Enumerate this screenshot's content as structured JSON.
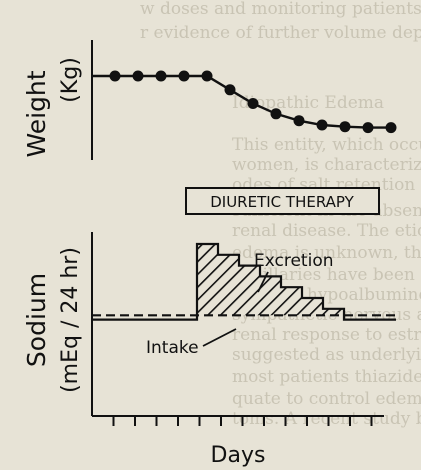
{
  "chart_data": [
    {
      "type": "line",
      "ylabel": "Weight (Kg)",
      "xlabel": "",
      "x": [
        1,
        2,
        3,
        4,
        5,
        6,
        7,
        8,
        9,
        10,
        11,
        12,
        13
      ],
      "series": [
        {
          "values": [
            10,
            10,
            10,
            10,
            10,
            8.4,
            6.8,
            5.6,
            4.8,
            4.3,
            4.1,
            4.0,
            4.0
          ]
        }
      ]
    },
    {
      "type": "step",
      "ylabel": "Sodium (mEq / 24 hr)",
      "xlabel": "Days",
      "x": [
        0,
        1,
        2,
        3,
        4,
        5,
        6,
        7,
        8,
        9,
        10,
        11,
        12,
        13
      ],
      "series": [
        {
          "name": "Excretion",
          "values": [
            3,
            3,
            3,
            3,
            3,
            10,
            9,
            8,
            7,
            6,
            5,
            4,
            3,
            3
          ]
        },
        {
          "name": "Intake",
          "values": [
            3.4,
            3.4,
            3.4,
            3.4,
            3.4,
            3.4,
            3.4,
            3.4,
            3.4,
            3.4,
            3.4,
            3.4,
            3.4,
            3.4
          ]
        }
      ],
      "annotations": {
        "excretion": "Excretion",
        "intake": "Intake"
      }
    }
  ],
  "therapy_label": "DIURETIC THERAPY",
  "labels": {
    "weight_line1": "Weight",
    "weight_line2": "(Kg)",
    "sodium_line1": "Sodium",
    "sodium_line2": "(mEq / 24 hr)",
    "days": "Days"
  },
  "ink_color": "#111111",
  "paper_color": "#e7e3d6"
}
